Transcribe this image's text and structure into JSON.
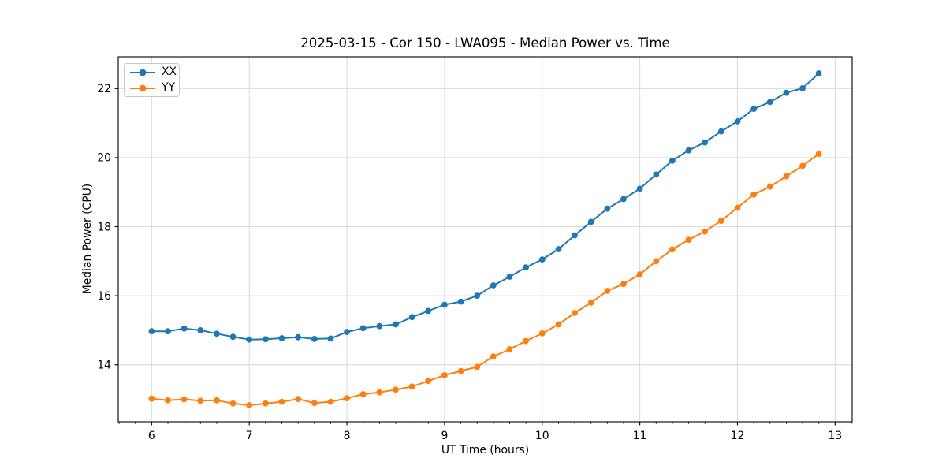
{
  "figure": {
    "background": "#ffffff"
  },
  "chart_data": {
    "type": "line",
    "title": "2025-03-15 - Cor 150 - LWA095 - Median Power vs. Time",
    "xlabel": "UT Time (hours)",
    "ylabel": "Median Power (CPU)",
    "xlim": [
      5.658,
      13.175
    ],
    "ylim": [
      12.35,
      22.92
    ],
    "xticks": [
      6,
      7,
      8,
      9,
      10,
      11,
      12,
      13
    ],
    "yticks": [
      14,
      16,
      18,
      20,
      22
    ],
    "x_minor_step": 0.16667,
    "grid": true,
    "grid_color": "#dcdcdc",
    "spine_color": "#000000",
    "legend_position": "upper-left",
    "x": [
      6.0,
      6.167,
      6.333,
      6.5,
      6.667,
      6.833,
      7.0,
      7.167,
      7.333,
      7.5,
      7.667,
      7.833,
      8.0,
      8.167,
      8.333,
      8.5,
      8.667,
      8.833,
      9.0,
      9.167,
      9.333,
      9.5,
      9.667,
      9.833,
      10.0,
      10.167,
      10.333,
      10.5,
      10.667,
      10.833,
      11.0,
      11.167,
      11.333,
      11.5,
      11.667,
      11.833,
      12.0,
      12.167,
      12.333,
      12.5,
      12.667,
      12.833
    ],
    "series": [
      {
        "name": "XX",
        "color": "#1f77b4",
        "values": [
          14.97,
          14.97,
          15.05,
          15.0,
          14.9,
          14.81,
          14.73,
          14.74,
          14.77,
          14.8,
          14.75,
          14.76,
          14.95,
          15.06,
          15.12,
          15.17,
          15.38,
          15.56,
          15.74,
          15.83,
          16.0,
          16.3,
          16.55,
          16.82,
          17.05,
          17.35,
          17.75,
          18.14,
          18.52,
          18.8,
          19.1,
          19.51,
          19.91,
          20.21,
          20.44,
          20.76,
          21.05,
          21.41,
          21.61,
          21.88,
          22.01,
          22.44
        ]
      },
      {
        "name": "YY",
        "color": "#ff7f0e",
        "values": [
          13.02,
          12.97,
          13.0,
          12.96,
          12.97,
          12.88,
          12.83,
          12.88,
          12.93,
          13.01,
          12.89,
          12.93,
          13.03,
          13.15,
          13.2,
          13.28,
          13.37,
          13.53,
          13.7,
          13.82,
          13.94,
          14.24,
          14.45,
          14.69,
          14.91,
          15.17,
          15.5,
          15.8,
          16.14,
          16.34,
          16.62,
          17.0,
          17.34,
          17.62,
          17.86,
          18.17,
          18.55,
          18.93,
          19.16,
          19.46,
          19.76,
          20.11
        ]
      }
    ]
  }
}
